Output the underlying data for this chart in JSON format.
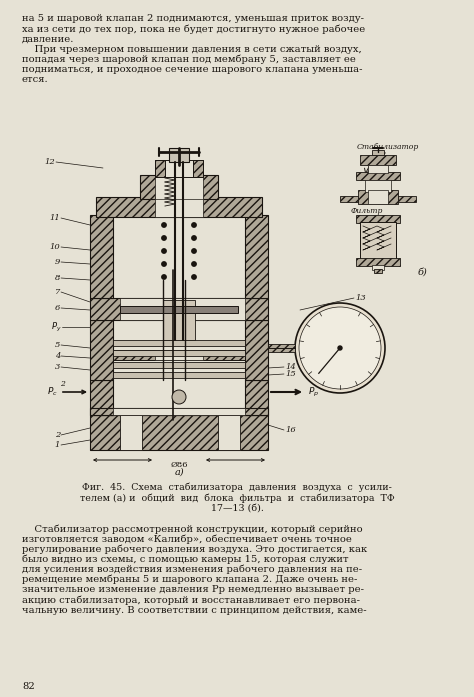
{
  "page_bg": "#e6e2d5",
  "text_color": "#1a1510",
  "hatch_color": "#2a2520",
  "line_color": "#1a1510",
  "body_fontsize": 7.2,
  "fig_caption_fontsize": 6.8,
  "top_text_lines": [
    "на 5 и шаровой клапан 2 поднимаются, уменьшая приток возду-",
    "ха из сети до тех пор, пока не будет достигнуто нужное рабочее",
    "давление.",
    "    При чрезмерном повышении давления в сети сжатый воздух,",
    "попадая через шаровой клапан под мембрану 5, заставляет ее",
    "подниматься, и проходное сечение шарового клапана уменьша-",
    "ется."
  ],
  "fig_caption_lines": [
    "Фиг.  45.  Схема  стабилизатора  давления  воздуха  с  усили-",
    "телем (а) и  общий  вид  блока  фильтра  и  стабилизатора  ТФ",
    "17—13 (б)."
  ],
  "bottom_text_lines": [
    "    Стабилизатор рассмотренной конструкции, который серийно",
    "изготовляется заводом «Калибр», обеспечивает очень точное",
    "регулирование рабочего давления воздуха. Это достигается, как",
    "было видно из схемы, с помощью камеры 15, которая служит",
    "для усиления воздействия изменения рабочего давления на пе-",
    "ремещение мембраны 5 и шарового клапана 2. Даже очень не-",
    "значительное изменение давления Рр немедленно вызывает ре-",
    "акцию стабилизатора, который и восстанавливает его первона-",
    "чальную величину. В соответствии с принципом действия, каме-"
  ],
  "page_number": "82"
}
